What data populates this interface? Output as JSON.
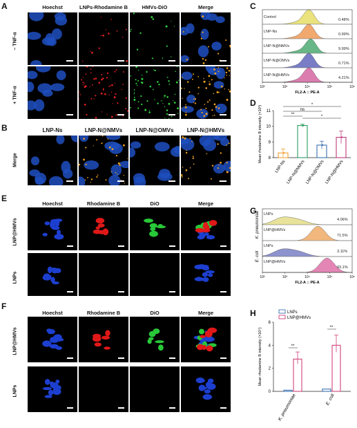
{
  "panels": {
    "A": {
      "label": "A",
      "cols": [
        "Hoechst",
        "LNPs-Rhodamine B",
        "HMVs-DiO",
        "Merge"
      ],
      "rows": [
        "– TNF-α",
        "+ TNF-α"
      ]
    },
    "B": {
      "label": "B",
      "cols": [
        "LNP-Ns",
        "LNP-N@NMVs",
        "LNP-N@OMVs",
        "LNP-N@HMVs"
      ],
      "row": "Merge"
    },
    "E": {
      "label": "E",
      "cols": [
        "Hoechst",
        "Rhodamine B",
        "DiO",
        "Merge"
      ],
      "rows": [
        "LNP@HMVs",
        "LNPs"
      ]
    },
    "F": {
      "label": "F",
      "cols": [
        "Hoechst",
        "Rhodamine B",
        "DiO",
        "Merge"
      ],
      "rows": [
        "LNP@HMVs",
        "LNPs"
      ]
    }
  },
  "chart_data": [
    {
      "panel": "C",
      "type": "area",
      "xlabel": "FL2-A :: PE-A",
      "x_ticks": [
        "10²",
        "10³",
        "10⁴",
        "10⁵",
        "10⁶"
      ],
      "series": [
        {
          "name": "Control",
          "percent": "0.48%",
          "color": "#e8e070"
        },
        {
          "name": "LNP-Ns",
          "percent": "0.99%",
          "color": "#f0a060"
        },
        {
          "name": "LNP-N@NMVs",
          "percent": "9.99%",
          "color": "#58b07a"
        },
        {
          "name": "LNP-N@OMVs",
          "percent": "0.71%",
          "color": "#6a6fc0"
        },
        {
          "name": "LNP-N@HMVs",
          "percent": "4.21%",
          "color": "#d96fa8"
        }
      ]
    },
    {
      "panel": "D",
      "type": "bar",
      "ylabel": "Mean rhodamine B intensity (×10³)",
      "ylim": [
        8,
        11
      ],
      "y_ticks": [
        "8",
        "9",
        "10",
        "11"
      ],
      "categories": [
        "LNP-Ns",
        "LNP-N@NMVs",
        "LNP-N@OMVs",
        "LNP-N@HMVs"
      ],
      "values": [
        8.3,
        10.05,
        8.8,
        9.3
      ],
      "errors": [
        0.25,
        0.08,
        0.25,
        0.4
      ],
      "colors": [
        "#f0a030",
        "#2a9a60",
        "#3a70b0",
        "#c03a7a"
      ],
      "significance": [
        "*",
        "ns",
        "**",
        "*"
      ]
    },
    {
      "panel": "G",
      "type": "area",
      "xlabel": "FL2-A :: PE-A",
      "x_ticks": [
        "10²",
        "10³",
        "10⁴",
        "10⁵",
        "10⁶"
      ],
      "groups": [
        "K. pneumoniae",
        "E. coli"
      ],
      "series": [
        {
          "name": "LNPs",
          "percent": "4.06%",
          "color": "#e6df90"
        },
        {
          "name": "LNP@HMVs",
          "percent": "71.5%",
          "color": "#f0b070"
        },
        {
          "name": "LNPs",
          "percent": "3.11%",
          "color": "#8088c8"
        },
        {
          "name": "LNP@HMVs",
          "percent": "93.1%",
          "color": "#e27aae"
        }
      ]
    },
    {
      "panel": "H",
      "type": "bar",
      "ylabel": "Mean rhodamine B intensity (×10⁴)",
      "ylim": [
        0,
        6
      ],
      "y_ticks": [
        "0",
        "2",
        "4",
        "6"
      ],
      "categories": [
        "K. pneumoniae",
        "E. coli"
      ],
      "legend": [
        "LNPs",
        "LNP@HMVs"
      ],
      "series": [
        {
          "name": "LNPs",
          "values": [
            0.1,
            0.2
          ],
          "color": "#3a6fb0"
        },
        {
          "name": "LNP@HMVs",
          "values": [
            2.8,
            4.0
          ],
          "color": "#d0407a"
        }
      ],
      "significance": [
        "**",
        "**"
      ]
    }
  ]
}
